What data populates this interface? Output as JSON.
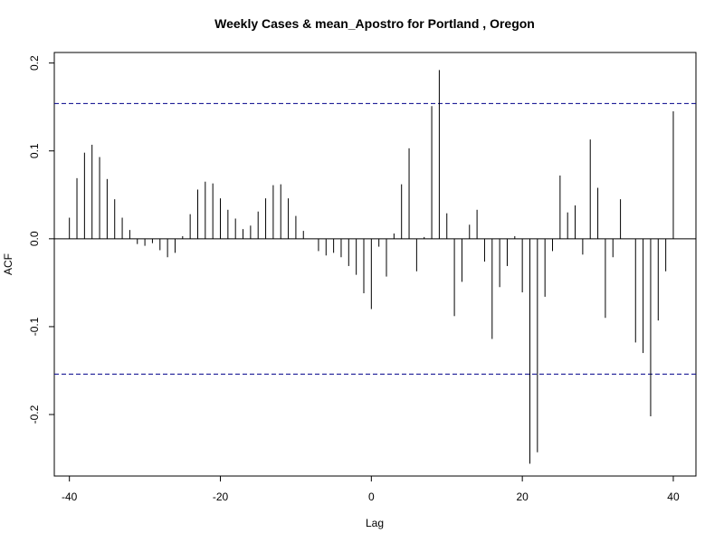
{
  "chart_data": {
    "type": "bar",
    "title": "Weekly Cases & mean_Apostro for Portland , Oregon",
    "xlabel": "Lag",
    "ylabel": "ACF",
    "xlim": [
      -42,
      43
    ],
    "ylim": [
      -0.27,
      0.212
    ],
    "x_ticks": [
      -40,
      -20,
      0,
      20,
      40
    ],
    "y_ticks": [
      -0.2,
      -0.1,
      0.0,
      0.1,
      0.2
    ],
    "x_tick_labels": [
      "-40",
      "-20",
      "0",
      "20",
      "40"
    ],
    "y_tick_labels": [
      "-0.2",
      "-0.1",
      "0.0",
      "0.1",
      "0.2"
    ],
    "confidence_band": 0.154,
    "confidence_color": "#00008b",
    "bar_color": "#000000",
    "lags": [
      -40,
      -39,
      -38,
      -37,
      -36,
      -35,
      -34,
      -33,
      -32,
      -31,
      -30,
      -29,
      -28,
      -27,
      -26,
      -25,
      -24,
      -23,
      -22,
      -21,
      -20,
      -19,
      -18,
      -17,
      -16,
      -15,
      -14,
      -13,
      -12,
      -11,
      -10,
      -9,
      -8,
      -7,
      -6,
      -5,
      -4,
      -3,
      -2,
      -1,
      0,
      1,
      2,
      3,
      4,
      5,
      6,
      7,
      8,
      9,
      10,
      11,
      12,
      13,
      14,
      15,
      16,
      17,
      18,
      19,
      20,
      21,
      22,
      23,
      24,
      25,
      26,
      27,
      28,
      29,
      30,
      31,
      32,
      33,
      34,
      35,
      36,
      37,
      38,
      39,
      40
    ],
    "values": [
      0.024,
      0.069,
      0.098,
      0.107,
      0.093,
      0.068,
      0.045,
      0.024,
      0.01,
      -0.006,
      -0.008,
      -0.005,
      -0.013,
      -0.021,
      -0.016,
      0.003,
      0.028,
      0.056,
      0.065,
      0.063,
      0.046,
      0.033,
      0.023,
      0.011,
      0.015,
      0.031,
      0.046,
      0.061,
      0.062,
      0.046,
      0.026,
      0.009,
      0.0,
      -0.014,
      -0.019,
      -0.016,
      -0.021,
      -0.031,
      -0.041,
      -0.062,
      -0.08,
      -0.009,
      -0.043,
      0.006,
      0.062,
      0.103,
      -0.037,
      0.002,
      0.151,
      0.192,
      0.029,
      -0.088,
      -0.049,
      0.016,
      0.033,
      -0.026,
      -0.114,
      -0.055,
      -0.031,
      0.003,
      -0.061,
      -0.256,
      -0.243,
      -0.066,
      -0.014,
      0.072,
      0.03,
      0.038,
      -0.018,
      0.113,
      0.058,
      -0.09,
      -0.021,
      0.045,
      0.0,
      -0.118,
      -0.13,
      -0.202,
      -0.093,
      -0.037,
      0.145
    ]
  }
}
